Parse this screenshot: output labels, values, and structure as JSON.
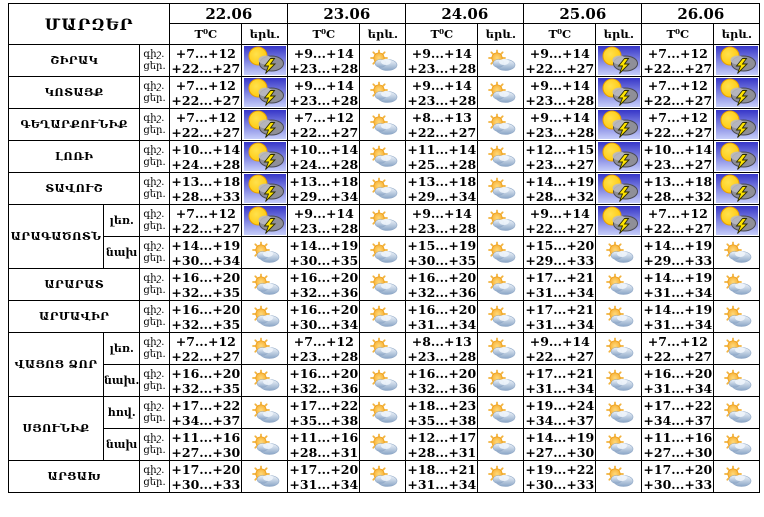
{
  "chart_data": {
    "type": "table",
    "title": "ՄԱՐԶԵՐ",
    "dates": [
      "22.06",
      "23.06",
      "24.06",
      "25.06",
      "26.06"
    ],
    "temp_header": "T⁰C",
    "weather_header": "երև.",
    "time_labels": [
      "գիշ.",
      "ցեր."
    ],
    "weather_legend": {
      "thunder": "sun-cloud-lightning (thunderstorm)",
      "partly": "sun-behind-cloud (partly cloudy)"
    },
    "regions": [
      {
        "name": "ՇԻՐԱԿ",
        "subrows": [
          {
            "label": null,
            "night": [
              "+7...+12",
              "+9...+14",
              "+9...+14",
              "+9...+14",
              "+7...+12"
            ],
            "day": [
              "+22...+27",
              "+23...+28",
              "+23...+28",
              "+22...+27",
              "+22...+27"
            ],
            "icons": [
              "thunder",
              "partly",
              "partly",
              "thunder",
              "thunder"
            ]
          }
        ]
      },
      {
        "name": "ԿՈՏԱՅՔ",
        "subrows": [
          {
            "label": null,
            "night": [
              "+7...+12",
              "+9...+14",
              "+9...+14",
              "+9...+14",
              "+7...+12"
            ],
            "day": [
              "+22...+27",
              "+23...+28",
              "+23...+28",
              "+23...+28",
              "+22...+27"
            ],
            "icons": [
              "thunder",
              "partly",
              "partly",
              "thunder",
              "thunder"
            ]
          }
        ]
      },
      {
        "name": "ԳԵՂԱՐՔՈՒՆԻՔ",
        "subrows": [
          {
            "label": null,
            "night": [
              "+7...+12",
              "+7...+12",
              "+8...+13",
              "+9...+14",
              "+7...+12"
            ],
            "day": [
              "+22...+27",
              "+22...+27",
              "+22...+27",
              "+23...+28",
              "+22...+27"
            ],
            "icons": [
              "thunder",
              "partly",
              "partly",
              "thunder",
              "thunder"
            ]
          }
        ]
      },
      {
        "name": "ԼՈՌԻ",
        "subrows": [
          {
            "label": null,
            "night": [
              "+10...+14",
              "+10...+14",
              "+11...+14",
              "+12...+15",
              "+10...+14"
            ],
            "day": [
              "+24...+28",
              "+24...+28",
              "+25...+28",
              "+23...+27",
              "+23...+27"
            ],
            "icons": [
              "thunder",
              "partly",
              "partly",
              "thunder",
              "thunder"
            ]
          }
        ]
      },
      {
        "name": "ՏԱՎՈՒՇ",
        "subrows": [
          {
            "label": null,
            "night": [
              "+13...+18",
              "+13...+18",
              "+13...+18",
              "+14...+19",
              "+13...+18"
            ],
            "day": [
              "+28...+33",
              "+29...+34",
              "+29...+34",
              "+28...+32",
              "+28...+32"
            ],
            "icons": [
              "thunder",
              "partly",
              "partly",
              "thunder",
              "thunder"
            ]
          }
        ]
      },
      {
        "name": "ԱՐԱԳԱԾՈՏՆ",
        "subrows": [
          {
            "label": "լեռ.",
            "night": [
              "+7...+12",
              "+9...+14",
              "+9...+14",
              "+9...+14",
              "+7...+12"
            ],
            "day": [
              "+22...+27",
              "+23...+28",
              "+23...+28",
              "+22...+27",
              "+22...+27"
            ],
            "icons": [
              "thunder",
              "partly",
              "partly",
              "thunder",
              "thunder"
            ]
          },
          {
            "label": "նախ",
            "night": [
              "+14...+19",
              "+14...+19",
              "+15...+19",
              "+15...+20",
              "+14...+19"
            ],
            "day": [
              "+30...+34",
              "+30...+35",
              "+30...+35",
              "+29...+33",
              "+29...+33"
            ],
            "icons": [
              "partly",
              "partly",
              "partly",
              "partly",
              "partly"
            ]
          }
        ]
      },
      {
        "name": "ԱՐԱՐԱՏ",
        "subrows": [
          {
            "label": null,
            "night": [
              "+16...+20",
              "+16...+20",
              "+16...+20",
              "+17...+21",
              "+14...+19"
            ],
            "day": [
              "+32...+35",
              "+32...+36",
              "+32...+36",
              "+31...+34",
              "+31...+34"
            ],
            "icons": [
              "partly",
              "partly",
              "partly",
              "partly",
              "partly"
            ]
          }
        ]
      },
      {
        "name": "ԱՐՄԱՎԻՐ",
        "subrows": [
          {
            "label": null,
            "night": [
              "+16...+20",
              "+16...+20",
              "+16...+20",
              "+17...+21",
              "+14...+19"
            ],
            "day": [
              "+32...+35",
              "+30...+34",
              "+31...+34",
              "+31...+34",
              "+31...+34"
            ],
            "icons": [
              "partly",
              "partly",
              "partly",
              "partly",
              "partly"
            ]
          }
        ]
      },
      {
        "name": "ՎԱՅՈՑ ՁՈՐ",
        "subrows": [
          {
            "label": "լեռ.",
            "night": [
              "+7...+12",
              "+7...+12",
              "+8...+13",
              "+9...+14",
              "+7...+12"
            ],
            "day": [
              "+22...+27",
              "+23...+28",
              "+23...+28",
              "+22...+27",
              "+22...+27"
            ],
            "icons": [
              "partly",
              "partly",
              "partly",
              "partly",
              "partly"
            ]
          },
          {
            "label": "նախ.",
            "night": [
              "+16...+20",
              "+16...+20",
              "+16...+20",
              "+17...+21",
              "+16...+20"
            ],
            "day": [
              "+32...+35",
              "+32...+36",
              "+32...+36",
              "+31...+34",
              "+31...+34"
            ],
            "icons": [
              "partly",
              "partly",
              "partly",
              "partly",
              "partly"
            ]
          }
        ]
      },
      {
        "name": "ՍՅՈՒՆԻՔ",
        "subrows": [
          {
            "label": "հով.",
            "night": [
              "+17...+22",
              "+17...+22",
              "+18...+23",
              "+19...+24",
              "+17...+22"
            ],
            "day": [
              "+34...+37",
              "+35...+38",
              "+35...+38",
              "+34...+37",
              "+34...+37"
            ],
            "icons": [
              "partly",
              "partly",
              "partly",
              "partly",
              "partly"
            ]
          },
          {
            "label": "նախ",
            "night": [
              "+11...+16",
              "+11...+16",
              "+12...+17",
              "+14...+19",
              "+11...+16"
            ],
            "day": [
              "+27...+30",
              "+28...+31",
              "+28...+31",
              "+27...+30",
              "+27...+30"
            ],
            "icons": [
              "partly",
              "partly",
              "partly",
              "partly",
              "partly"
            ]
          }
        ]
      },
      {
        "name": "ԱՐՑԱԽ",
        "subrows": [
          {
            "label": null,
            "night": [
              "+17...+20",
              "+17...+20",
              "+18...+21",
              "+19...+22",
              "+17...+20"
            ],
            "day": [
              "+30...+33",
              "+31...+34",
              "+31...+34",
              "+30...+33",
              "+30...+33"
            ],
            "icons": [
              "partly",
              "partly",
              "partly",
              "partly",
              "partly"
            ]
          }
        ]
      }
    ],
    "colors": {
      "border": "#000000",
      "background": "#ffffff",
      "thunder_sky_top": "#3636c8",
      "thunder_sky_bottom": "#c6cefa",
      "sun_yellow": "#ffd400",
      "cloud_gray": "#8f8f98",
      "lightning_yellow": "#ffe400",
      "partly_sun_orange": "#f5a623",
      "partly_cloud_blue": "#9db4ce"
    }
  }
}
